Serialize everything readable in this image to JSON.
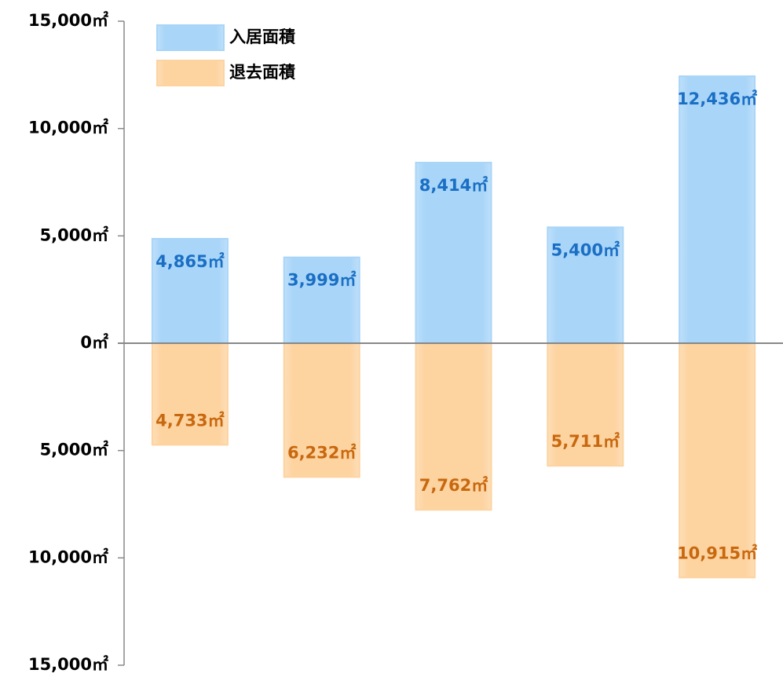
{
  "chart_data": {
    "type": "bar",
    "categories": [
      null,
      null,
      null,
      null,
      null
    ],
    "series": [
      {
        "name": "入居面積",
        "color": "#a9d5f8",
        "label_color": "#1a6fc4",
        "values": [
          4865,
          3999,
          8414,
          5400,
          12436
        ],
        "value_labels": [
          "4,865㎡",
          "3,999㎡",
          "8,414㎡",
          "5,400㎡",
          "12,436㎡"
        ]
      },
      {
        "name": "退去面積",
        "color": "#fdd3a0",
        "label_color": "#c8680f",
        "values": [
          -4733,
          -6232,
          -7762,
          -5711,
          -10915
        ],
        "value_labels": [
          "4,733㎡",
          "6,232㎡",
          "7,762㎡",
          "5,711㎡",
          "10,915㎡"
        ]
      }
    ],
    "ylim": [
      -15000,
      15000
    ],
    "yticks": [
      {
        "value": 15000,
        "label": "15,000㎡"
      },
      {
        "value": 10000,
        "label": "10,000㎡"
      },
      {
        "value": 5000,
        "label": "5,000㎡"
      },
      {
        "value": 0,
        "label": "0㎡"
      },
      {
        "value": -5000,
        "label": "5,000㎡"
      },
      {
        "value": -10000,
        "label": "10,000㎡"
      },
      {
        "value": -15000,
        "label": "15,000㎡"
      }
    ],
    "legend": "top-left"
  }
}
